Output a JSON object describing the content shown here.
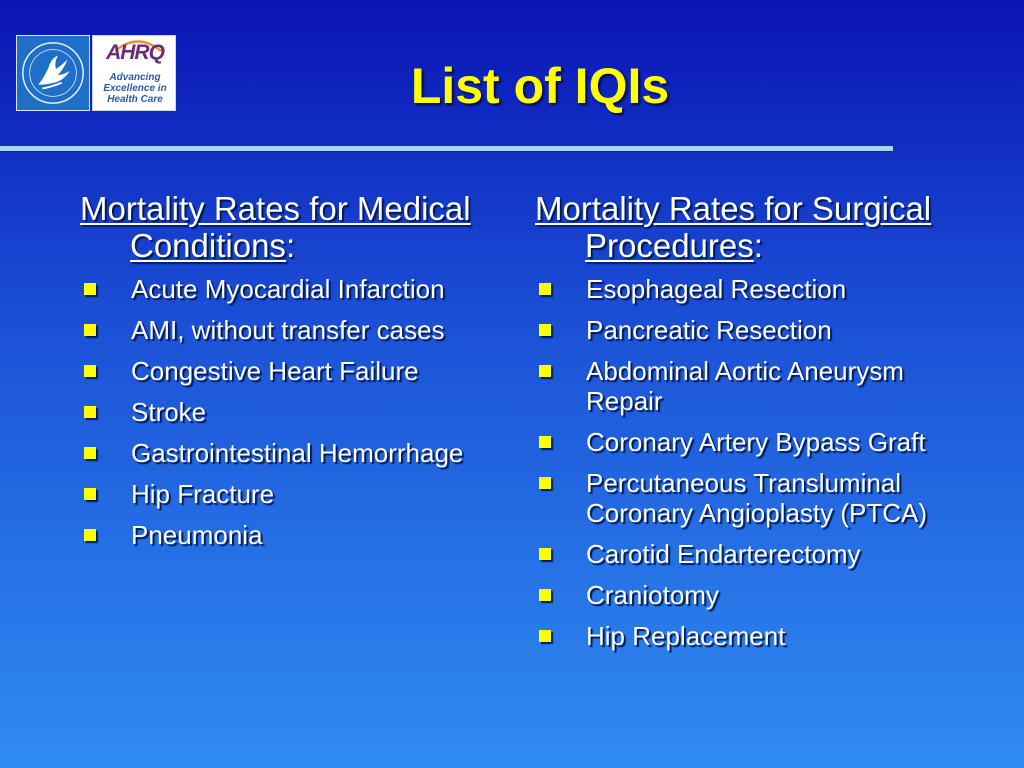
{
  "slide": {
    "title": "List of IQIs"
  },
  "logo": {
    "ahrq_mark": "AHRQ",
    "ahrq_tagline": [
      "Advancing",
      "Excellence in",
      "Health Care"
    ]
  },
  "left_column": {
    "heading": "Mortality Rates for Medical Conditions",
    "heading_suffix": ":",
    "items": [
      "Acute Myocardial Infarction",
      "AMI, without transfer cases",
      "Congestive Heart Failure",
      "Stroke",
      "Gastrointestinal Hemorrhage",
      "Hip Fracture",
      "Pneumonia"
    ]
  },
  "right_column": {
    "heading": "Mortality Rates for Surgical Procedures",
    "heading_suffix": ":",
    "items": [
      "Esophageal Resection",
      "Pancreatic Resection",
      "Abdominal Aortic Aneurysm Repair",
      "Coronary Artery Bypass Graft",
      "Percutaneous Transluminal Coronary Angioplasty (PTCA)",
      "Carotid Endarterectomy",
      "Craniotomy",
      "Hip Replacement"
    ]
  },
  "colors": {
    "title": "#ffff00",
    "body_text": "#ffffff",
    "bullet": "#ffff00",
    "rule": "#a9d4f5",
    "background_top": "#0a14b4",
    "background_bottom": "#2f8cf2"
  },
  "icons": {
    "bullet": "square-bullet-icon",
    "hhs_logo": "hhs-eagle-seal-icon",
    "ahrq_logo": "ahrq-logo-icon"
  }
}
